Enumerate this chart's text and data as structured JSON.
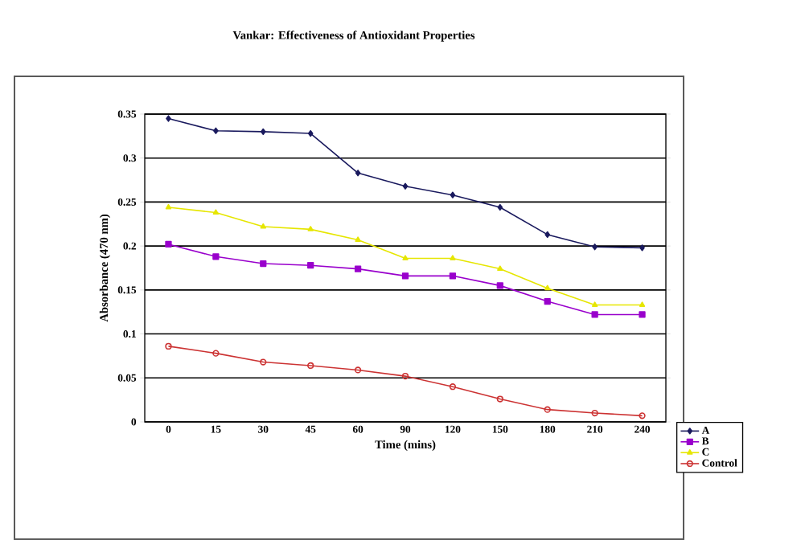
{
  "chart_data": {
    "type": "line",
    "title": "Vankar: Effectiveness of Antioxidant Properties",
    "xlabel": "Time (mins)",
    "ylabel": "Absorbance (470 nm)",
    "categories": [
      "0",
      "15",
      "30",
      "45",
      "60",
      "90",
      "120",
      "150",
      "180",
      "210",
      "240"
    ],
    "series": [
      {
        "name": "A",
        "color": "#1a1a5e",
        "marker": "diamond",
        "values": [
          0.345,
          0.331,
          0.33,
          0.328,
          0.283,
          0.268,
          0.258,
          0.244,
          0.213,
          0.199,
          0.198
        ]
      },
      {
        "name": "B",
        "color": "#9900cc",
        "marker": "square",
        "values": [
          0.202,
          0.188,
          0.18,
          0.178,
          0.174,
          0.166,
          0.166,
          0.155,
          0.137,
          0.122,
          0.122
        ]
      },
      {
        "name": "C",
        "color": "#e6e600",
        "marker": "triangle",
        "values": [
          0.244,
          0.238,
          0.222,
          0.219,
          0.207,
          0.186,
          0.186,
          0.174,
          0.152,
          0.133,
          0.133
        ]
      },
      {
        "name": "Control",
        "color": "#cc3333",
        "marker": "circle",
        "values": [
          0.086,
          0.078,
          0.068,
          0.064,
          0.059,
          0.052,
          0.04,
          0.026,
          0.014,
          0.01,
          0.007
        ]
      }
    ],
    "ylim": [
      0,
      0.35
    ],
    "yticks": [
      0,
      0.05,
      0.1,
      0.15,
      0.2,
      0.25,
      0.3,
      0.35
    ],
    "grid": "y",
    "legend": "bottom right",
    "line_style": "solid"
  }
}
